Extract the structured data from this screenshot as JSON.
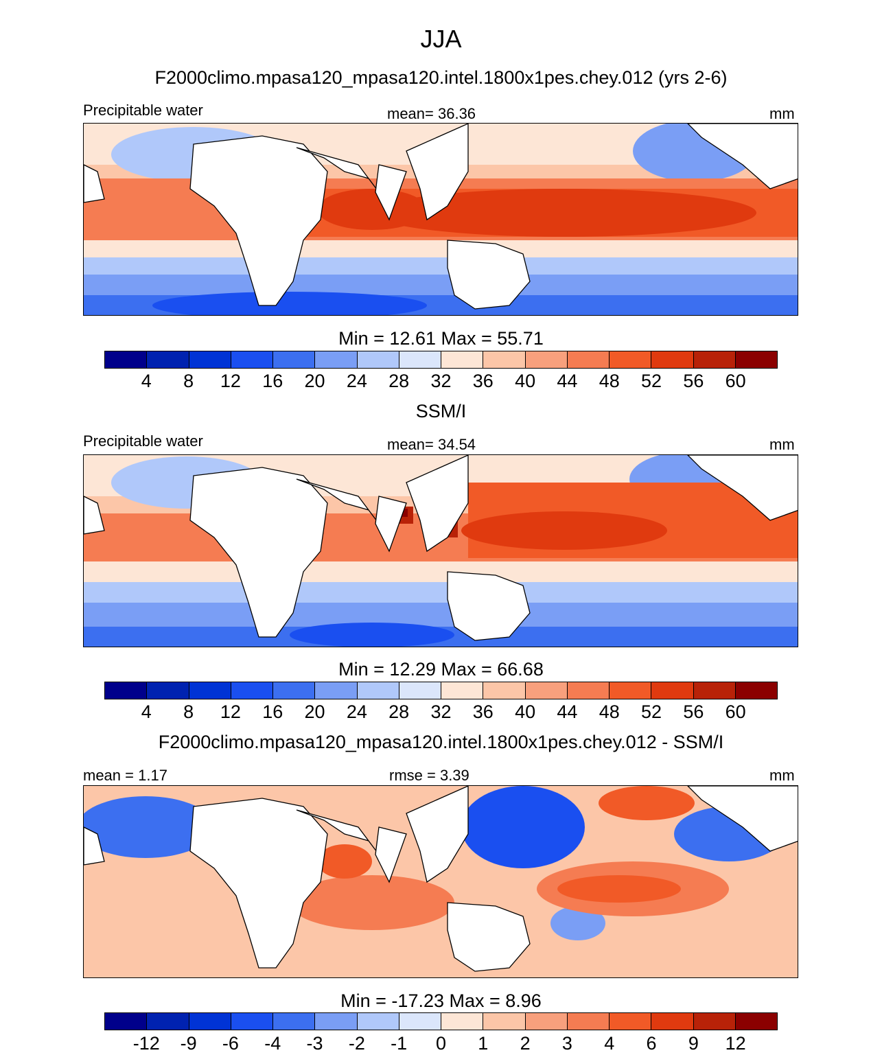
{
  "main_title": "JJA",
  "colors": {
    "pw_scale": [
      "#00008b",
      "#0022b0",
      "#0033d5",
      "#1a4ff0",
      "#3c6ff0",
      "#7a9ef5",
      "#b0c8fa",
      "#dbe6fb",
      "#fde6d6",
      "#fcc6a8",
      "#f8a07d",
      "#f57c52",
      "#f15a27",
      "#e03a0f",
      "#b82208",
      "#8b0000"
    ],
    "diff_scale": [
      "#00008b",
      "#0022b0",
      "#0033d5",
      "#1a4ff0",
      "#3c6ff0",
      "#7a9ef5",
      "#b0c8fa",
      "#dbe6fb",
      "#fde6d6",
      "#fcc6a8",
      "#f8a07d",
      "#f57c52",
      "#f15a27",
      "#e03a0f",
      "#b82208",
      "#8b0000"
    ],
    "land": "#ffffff",
    "coast": "#000000"
  },
  "panels": [
    {
      "title": "F2000climo.mpasa120_mpasa120.intel.1800x1pes.chey.012 (yrs 2-6)",
      "left_label": "Precipitable water",
      "center_label": "mean=  36.36",
      "right_label": "mm",
      "minmax": "Min =  12.61 Max =  55.71",
      "ticks": [
        "4",
        "8",
        "12",
        "16",
        "20",
        "24",
        "28",
        "32",
        "36",
        "40",
        "44",
        "48",
        "52",
        "56",
        "60"
      ]
    },
    {
      "title": "SSM/I",
      "left_label": "Precipitable water",
      "center_label": "mean=  34.54",
      "right_label": "mm",
      "minmax": "Min =  12.29 Max =  66.68",
      "ticks": [
        "4",
        "8",
        "12",
        "16",
        "20",
        "24",
        "28",
        "32",
        "36",
        "40",
        "44",
        "48",
        "52",
        "56",
        "60"
      ]
    },
    {
      "title": "F2000climo.mpasa120_mpasa120.intel.1800x1pes.chey.012 - SSM/I",
      "left_label": "mean =   1.17",
      "center_label": "rmse =   3.39",
      "right_label": "mm",
      "minmax": "Min = -17.23 Max =   8.96",
      "ticks": [
        "-12",
        "-9",
        "-6",
        "-4",
        "-3",
        "-2",
        "-1",
        "0",
        "1",
        "2",
        "3",
        "4",
        "6",
        "9",
        "12"
      ]
    }
  ]
}
